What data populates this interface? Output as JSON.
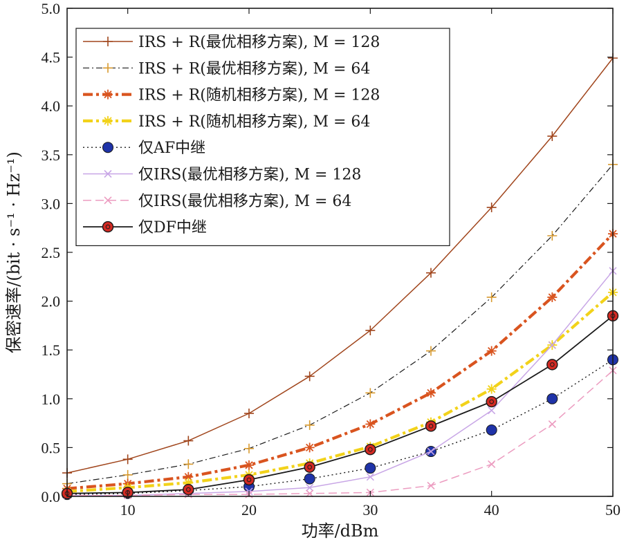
{
  "chart_data": {
    "type": "line",
    "xlabel": "功率/dBm",
    "ylabel": "保密速率/(bit · s⁻¹ · Hz⁻¹)",
    "xlim": [
      5,
      50
    ],
    "ylim": [
      0,
      5
    ],
    "xticks": [
      "10",
      "20",
      "30",
      "40",
      "50"
    ],
    "xtick_values": [
      10,
      20,
      30,
      40,
      50
    ],
    "yticks": [
      "0.0",
      "0.5",
      "1.0",
      "1.5",
      "2.0",
      "2.5",
      "3.0",
      "3.5",
      "4.0",
      "4.5",
      "5.0"
    ],
    "ytick_values": [
      0,
      0.5,
      1,
      1.5,
      2,
      2.5,
      3,
      3.5,
      4,
      4.5,
      5
    ],
    "legend_position": "top-left",
    "grid": false,
    "x": [
      5,
      10,
      15,
      20,
      25,
      30,
      35,
      40,
      45,
      50
    ],
    "series": [
      {
        "name": "IRS + R(最优相移方案), M = 128",
        "color": "#a0451c",
        "line": "solid",
        "marker": "plus",
        "values": [
          0.24,
          0.38,
          0.57,
          0.85,
          1.23,
          1.7,
          2.29,
          2.96,
          3.69,
          4.49
        ]
      },
      {
        "name": "IRS + R(最优相移方案), M = 64",
        "color": "#1a1a1a",
        "marker_color": "#d89a2e",
        "line": "dashdot",
        "marker": "plus",
        "values": [
          0.13,
          0.22,
          0.33,
          0.49,
          0.73,
          1.06,
          1.49,
          2.04,
          2.67,
          3.4
        ]
      },
      {
        "name": "IRS + R(随机相移方案), M = 128",
        "color": "#d9541f",
        "line": "dashdot-thick",
        "marker": "asterisk",
        "values": [
          0.08,
          0.13,
          0.2,
          0.32,
          0.5,
          0.74,
          1.06,
          1.49,
          2.04,
          2.69
        ]
      },
      {
        "name": "IRS + R(随机相移方案), M = 64",
        "color": "#f2d21a",
        "line": "dashdot-thick",
        "marker": "asterisk",
        "values": [
          0.05,
          0.09,
          0.14,
          0.22,
          0.34,
          0.51,
          0.76,
          1.1,
          1.55,
          2.09
        ]
      },
      {
        "name": "仅AF中继",
        "color": "#1a1a1a",
        "marker_color": "#1f33a8",
        "line": "dotted",
        "marker": "circle-filled",
        "values": [
          0.02,
          0.03,
          0.06,
          0.1,
          0.18,
          0.29,
          0.46,
          0.68,
          1.0,
          1.4
        ]
      },
      {
        "name": "仅IRS(最优相移方案), M = 128",
        "color": "#c8a6e6",
        "line": "solid",
        "marker": "x",
        "values": [
          0.01,
          0.01,
          0.03,
          0.05,
          0.09,
          0.2,
          0.46,
          0.88,
          1.55,
          2.31
        ]
      },
      {
        "name": "仅IRS(最优相移方案), M = 64",
        "color": "#ec9cc0",
        "line": "dashed",
        "marker": "x",
        "values": [
          0.01,
          0.01,
          0.02,
          0.02,
          0.03,
          0.04,
          0.11,
          0.33,
          0.74,
          1.29
        ]
      },
      {
        "name": "仅DF中继",
        "color": "#1a1a1a",
        "marker_color": "#d42a23",
        "line": "solid",
        "marker": "circle-dot",
        "values": [
          0.03,
          0.04,
          0.07,
          0.17,
          0.3,
          0.48,
          0.72,
          0.97,
          1.35,
          1.85
        ]
      }
    ]
  }
}
